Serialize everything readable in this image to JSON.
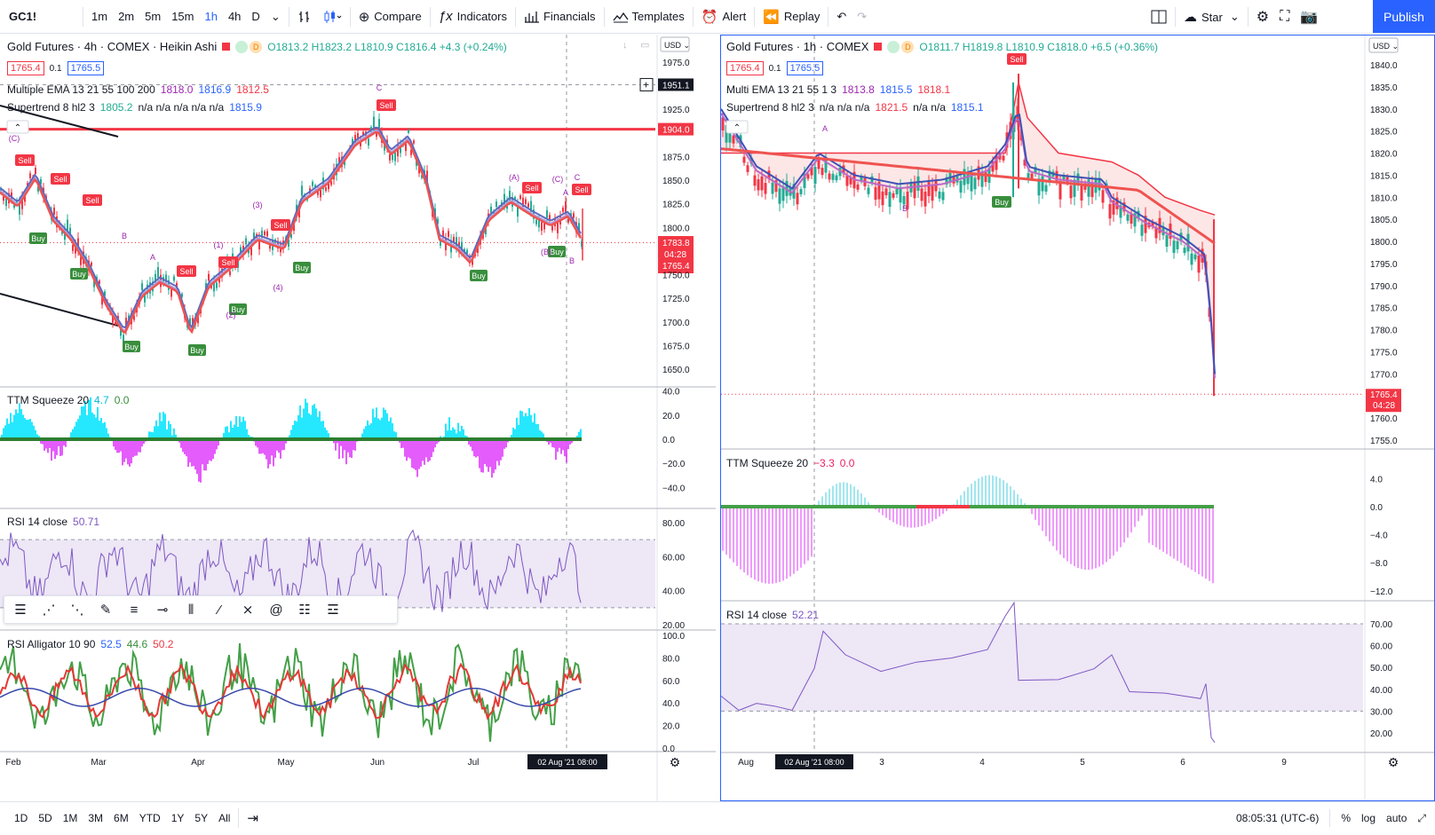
{
  "toolbar": {
    "symbol": "GC1!",
    "intervals": [
      "1m",
      "2m",
      "5m",
      "15m",
      "1h",
      "4h",
      "D"
    ],
    "active_interval": "1h",
    "compare": "Compare",
    "indicators": "Indicators",
    "financials": "Financials",
    "templates": "Templates",
    "alert": "Alert",
    "replay": "Replay",
    "star": "Star",
    "publish": "Publish"
  },
  "left": {
    "title": "Gold Futures · 4h · COMEX · Heikin Ashi",
    "ohlc": "O1813.2 H1823.2 L1810.9 C1816.4 +4.3 (+0.24%)",
    "bid": "1765.4",
    "spread": "0.1",
    "ask": "1765.5",
    "ema_label": "Multiple EMA 13 21 55 100 200",
    "ema_values": [
      "1818.0",
      "1816.9",
      "1812.5"
    ],
    "st_label": "Supertrend 8 hl2 3",
    "st_values": [
      "1805.2",
      "n/a n/a n/a n/a n/a",
      "1815.9"
    ],
    "ttm_label": "TTM Squeeze 20",
    "ttm_values": [
      "4.7",
      "0.0"
    ],
    "rsi_label": "RSI 14 close",
    "rsi_value": "50.71",
    "alligator_label": "RSI Alligator 10 90",
    "alligator_values": [
      "52.5",
      "44.6",
      "50.2"
    ],
    "currency": "USD",
    "price_axis": [
      "1975.0",
      "1951.1",
      "1925.0",
      "1904.0",
      "1875.0",
      "1850.0",
      "1825.0",
      "1800.0",
      "1783.8",
      "04:28",
      "1765.4",
      "1750.0",
      "1725.0",
      "1700.0",
      "1675.0",
      "1650.0"
    ],
    "ttm_axis": [
      "40.0",
      "20.0",
      "0.0",
      "−20.0",
      "−40.0"
    ],
    "rsi_axis": [
      "80.00",
      "60.00",
      "40.00",
      "20.00"
    ],
    "all_axis": [
      "100.0",
      "80.0",
      "60.0",
      "40.0",
      "20.0",
      "0.0"
    ],
    "time_axis": [
      "Feb",
      "Mar",
      "Apr",
      "May",
      "Jun",
      "Jul"
    ],
    "time_tag": "02 Aug '21   08:00",
    "signals": {
      "sell": "Sell",
      "buy": "Buy"
    },
    "waves": [
      "(C)",
      "C",
      "A",
      "B",
      "(1)",
      "(2)",
      "(3)",
      "(4)",
      "(A)",
      "(C)",
      "A",
      "B",
      "C",
      "(B)"
    ]
  },
  "right": {
    "title": "Gold Futures · 1h · COMEX",
    "ohlc": "O1811.7 H1819.8 L1810.9 C1818.0 +6.5 (+0.36%)",
    "bid": "1765.4",
    "spread": "0.1",
    "ask": "1765.5",
    "ema_label": "Multi EMA 13 21 55 1 3",
    "ema_values": [
      "1813.8",
      "1815.5",
      "1818.1"
    ],
    "st_label": "Supertrend 8 hl2 3",
    "st_values": [
      "n/a n/a n/a",
      "1821.5",
      "n/a n/a",
      "1815.1"
    ],
    "ttm_label": "TTM Squeeze 20",
    "ttm_values": [
      "−3.3",
      "0.0"
    ],
    "rsi_label": "RSI 14 close",
    "rsi_value": "52.21",
    "currency": "USD",
    "price_axis": [
      "1840.0",
      "1835.0",
      "1830.0",
      "1825.0",
      "1820.0",
      "1815.0",
      "1810.0",
      "1805.0",
      "1800.0",
      "1795.0",
      "1790.0",
      "1785.0",
      "1780.0",
      "1775.0",
      "1770.0",
      "1765.4",
      "04:28",
      "1760.0",
      "1755.0"
    ],
    "ttm_axis": [
      "4.0",
      "0.0",
      "−4.0",
      "−8.0",
      "−12.0"
    ],
    "rsi_axis": [
      "70.00",
      "60.00",
      "50.00",
      "40.00",
      "30.00",
      "20.00"
    ],
    "time_axis": [
      "Aug",
      "3",
      "4",
      "5",
      "6",
      "9"
    ],
    "time_tag": "02 Aug '21   08:00",
    "signals": {
      "sell": "Sell",
      "buy": "Buy"
    },
    "waves": [
      "A",
      "B"
    ]
  },
  "bottom": {
    "ranges": [
      "1D",
      "5D",
      "1M",
      "3M",
      "6M",
      "YTD",
      "1Y",
      "5Y",
      "All"
    ],
    "clock": "08:05:31 (UTC-6)",
    "percent": "%",
    "log": "log",
    "auto": "auto"
  }
}
